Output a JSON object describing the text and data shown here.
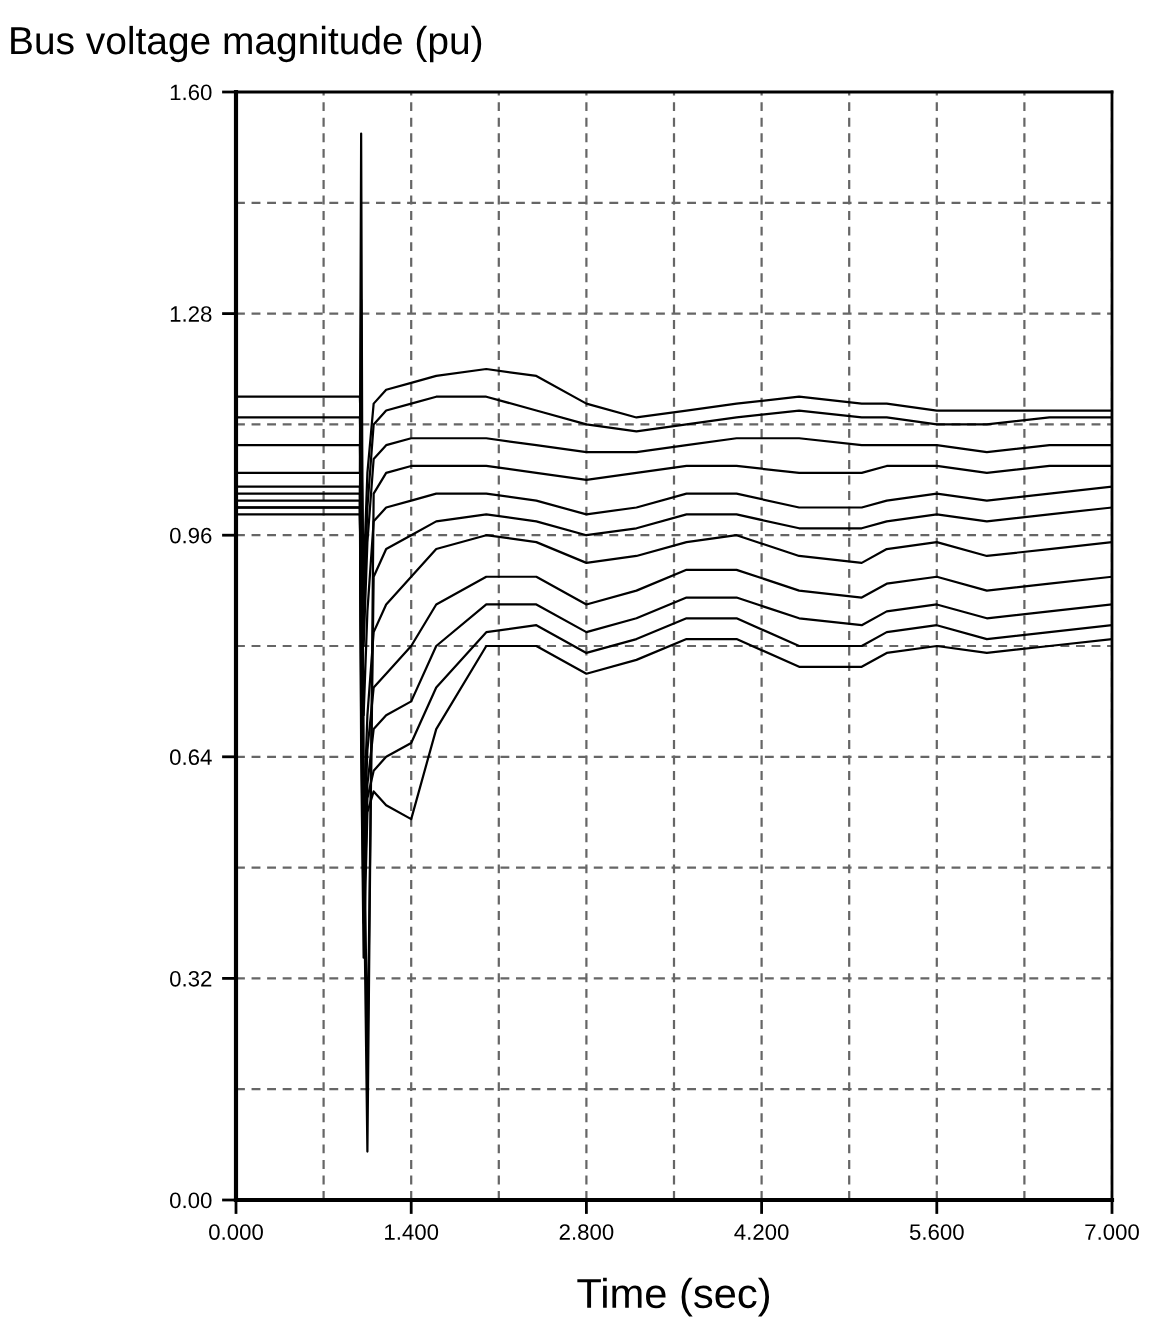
{
  "chart_data": {
    "type": "line",
    "title": "Bus voltage magnitude (pu)",
    "xlabel": "Time (sec)",
    "x": [
      0,
      0.99,
      1.0,
      1.02,
      1.05,
      1.1,
      1.2,
      1.4,
      1.6,
      2.0,
      2.4,
      2.8,
      3.2,
      3.6,
      4.0,
      4.5,
      5.0,
      5.2,
      5.6,
      6.0,
      6.5,
      7.0
    ],
    "series": [
      {
        "color": "#000000",
        "values": [
          1.16,
          1.16,
          1.1,
          0.9,
          1.05,
          1.15,
          1.17,
          1.18,
          1.19,
          1.2,
          1.19,
          1.15,
          1.13,
          1.14,
          1.15,
          1.16,
          1.15,
          1.15,
          1.14,
          1.14,
          1.14,
          1.14
        ]
      },
      {
        "color": "#000000",
        "values": [
          1.13,
          1.13,
          1.05,
          0.85,
          1.0,
          1.12,
          1.14,
          1.15,
          1.16,
          1.16,
          1.14,
          1.12,
          1.11,
          1.12,
          1.13,
          1.14,
          1.13,
          1.13,
          1.12,
          1.12,
          1.13,
          1.13
        ]
      },
      {
        "color": "#000000",
        "values": [
          1.09,
          1.09,
          1.0,
          0.8,
          0.95,
          1.07,
          1.09,
          1.1,
          1.1,
          1.1,
          1.09,
          1.08,
          1.08,
          1.09,
          1.1,
          1.1,
          1.09,
          1.09,
          1.09,
          1.08,
          1.09,
          1.09
        ]
      },
      {
        "color": "#000000",
        "values": [
          1.05,
          1.05,
          1.54,
          0.5,
          0.07,
          1.02,
          1.05,
          1.06,
          1.06,
          1.06,
          1.05,
          1.04,
          1.05,
          1.06,
          1.06,
          1.05,
          1.05,
          1.06,
          1.06,
          1.05,
          1.06,
          1.06
        ]
      },
      {
        "color": "#000000",
        "values": [
          1.02,
          1.02,
          0.95,
          0.7,
          0.85,
          0.98,
          1.0,
          1.01,
          1.02,
          1.02,
          1.01,
          0.99,
          1.0,
          1.02,
          1.02,
          1.0,
          1.0,
          1.01,
          1.02,
          1.01,
          1.02,
          1.03
        ]
      },
      {
        "color": "#000000",
        "values": [
          1.0,
          1.0,
          1.3,
          0.6,
          0.2,
          0.9,
          0.94,
          0.96,
          0.98,
          0.99,
          0.98,
          0.96,
          0.97,
          0.99,
          0.99,
          0.97,
          0.97,
          0.98,
          0.99,
          0.98,
          0.99,
          1.0
        ]
      },
      {
        "color": "#000000",
        "values": [
          0.99,
          0.99,
          0.85,
          0.55,
          0.7,
          0.82,
          0.86,
          0.9,
          0.94,
          0.96,
          0.95,
          0.92,
          0.93,
          0.95,
          0.96,
          0.93,
          0.92,
          0.94,
          0.95,
          0.93,
          0.94,
          0.95
        ]
      },
      {
        "color": "#000000",
        "values": [
          1.0,
          1.0,
          0.8,
          0.5,
          0.65,
          0.74,
          0.76,
          0.8,
          0.86,
          0.9,
          0.9,
          0.86,
          0.88,
          0.91,
          0.91,
          0.88,
          0.87,
          0.89,
          0.9,
          0.88,
          0.89,
          0.9
        ]
      },
      {
        "color": "#000000",
        "values": [
          1.01,
          1.01,
          0.75,
          0.45,
          0.6,
          0.68,
          0.7,
          0.72,
          0.8,
          0.86,
          0.86,
          0.82,
          0.84,
          0.87,
          0.87,
          0.84,
          0.83,
          0.85,
          0.86,
          0.84,
          0.85,
          0.86
        ]
      },
      {
        "color": "#000000",
        "values": [
          1.03,
          1.03,
          0.7,
          0.4,
          0.58,
          0.62,
          0.64,
          0.66,
          0.74,
          0.82,
          0.83,
          0.79,
          0.81,
          0.84,
          0.84,
          0.8,
          0.8,
          0.82,
          0.83,
          0.81,
          0.82,
          0.83
        ]
      },
      {
        "color": "#000000",
        "values": [
          1.0,
          1.0,
          0.65,
          0.35,
          0.56,
          0.59,
          0.57,
          0.55,
          0.68,
          0.8,
          0.8,
          0.76,
          0.78,
          0.81,
          0.81,
          0.77,
          0.77,
          0.79,
          0.8,
          0.79,
          0.8,
          0.81
        ]
      }
    ],
    "xlim": [
      0,
      7
    ],
    "xticks": [
      {
        "value": 0,
        "label": "0.000"
      },
      {
        "value": 0.7,
        "label": null
      },
      {
        "value": 1.4,
        "label": "1.400"
      },
      {
        "value": 2.1,
        "label": null
      },
      {
        "value": 2.8,
        "label": "2.800"
      },
      {
        "value": 3.5,
        "label": null
      },
      {
        "value": 4.2,
        "label": "4.200"
      },
      {
        "value": 4.9,
        "label": null
      },
      {
        "value": 5.6,
        "label": "5.600"
      },
      {
        "value": 6.3,
        "label": null
      },
      {
        "value": 7,
        "label": "7.000"
      }
    ],
    "ylim": [
      0,
      1.6
    ],
    "yticks": [
      {
        "value": 0,
        "label": "0.00"
      },
      {
        "value": 0.16,
        "label": null
      },
      {
        "value": 0.32,
        "label": "0.32"
      },
      {
        "value": 0.48,
        "label": null
      },
      {
        "value": 0.64,
        "label": "0.64"
      },
      {
        "value": 0.8,
        "label": null
      },
      {
        "value": 0.96,
        "label": "0.96"
      },
      {
        "value": 1.12,
        "label": null
      },
      {
        "value": 1.28,
        "label": "1.28"
      },
      {
        "value": 1.44,
        "label": null
      },
      {
        "value": 1.6,
        "label": "1.60"
      }
    ],
    "grid": true,
    "marker": "none",
    "line_style": "solid"
  }
}
